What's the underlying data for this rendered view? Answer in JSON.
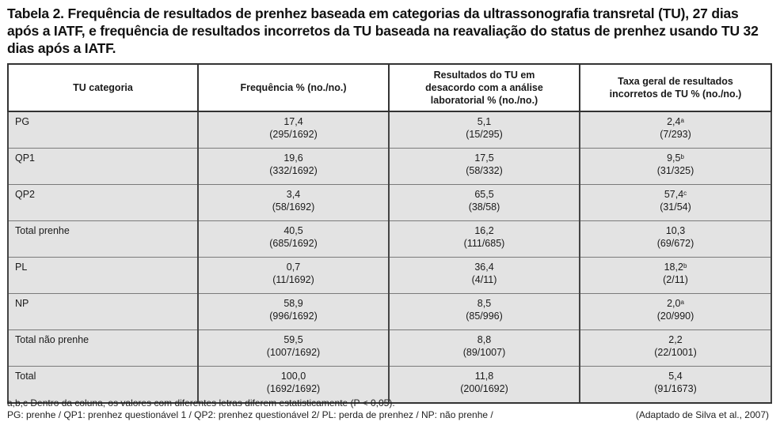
{
  "title": "Tabela 2. Frequência de resultados de prenhez baseada em categorias da ultrassonografia transretal (TU), 27 dias após a IATF, e frequência de resultados incorretos da TU baseada na reavaliação do status de prenhez usando TU 32 dias após a IATF.",
  "table": {
    "headers": [
      [
        "TU categoria"
      ],
      [
        "Frequência % (no./no.)"
      ],
      [
        "Resultados do TU em",
        "desacordo com a análise",
        "laboratorial % (no./no.)"
      ],
      [
        "Taxa geral de resultados",
        "incorretos de TU % (no./no.)"
      ]
    ],
    "rows": [
      {
        "label": "PG",
        "freq": "17,4",
        "freq_n": "(295/1692)",
        "desac": "5,1",
        "desac_n": "(15/295)",
        "taxa": "2,4",
        "taxa_sup": "a",
        "taxa_n": "(7/293)"
      },
      {
        "label": "QP1",
        "freq": "19,6",
        "freq_n": "(332/1692)",
        "desac": "17,5",
        "desac_n": "(58/332)",
        "taxa": "9,5",
        "taxa_sup": "b",
        "taxa_n": "(31/325)"
      },
      {
        "label": "QP2",
        "freq": "3,4",
        "freq_n": "(58/1692)",
        "desac": "65,5",
        "desac_n": "(38/58)",
        "taxa": "57,4",
        "taxa_sup": "c",
        "taxa_n": "(31/54)"
      },
      {
        "label": "Total prenhe",
        "freq": "40,5",
        "freq_n": "(685/1692)",
        "desac": "16,2",
        "desac_n": "(111/685)",
        "taxa": "10,3",
        "taxa_sup": "",
        "taxa_n": "(69/672)"
      },
      {
        "label": "PL",
        "freq": "0,7",
        "freq_n": "(11/1692)",
        "desac": "36,4",
        "desac_n": "(4/11)",
        "taxa": "18,2",
        "taxa_sup": "b",
        "taxa_n": "(2/11)"
      },
      {
        "label": "NP",
        "freq": "58,9",
        "freq_n": "(996/1692)",
        "desac": "8,5",
        "desac_n": "(85/996)",
        "taxa": "2,0",
        "taxa_sup": "a",
        "taxa_n": "(20/990)"
      },
      {
        "label": "Total não prenhe",
        "freq": "59,5",
        "freq_n": "(1007/1692)",
        "desac": "8,8",
        "desac_n": "(89/1007)",
        "taxa": "2,2",
        "taxa_sup": "",
        "taxa_n": "(22/1001)"
      },
      {
        "label": "Total",
        "freq": "100,0",
        "freq_n": "(1692/1692)",
        "desac": "11,8",
        "desac_n": "(200/1692)",
        "taxa": "5,4",
        "taxa_sup": "",
        "taxa_n": "(91/1673)"
      }
    ]
  },
  "footnotes": {
    "line1": "a,b,c Dentro da coluna, os valores com diferentes letras diferem estatisticamente (P < 0,05).",
    "line2": "PG: prenhe / QP1: prenhez questionável 1 / QP2: prenhez questionável 2/ PL: perda de prenhez / NP: não prenhe /",
    "source": "(Adaptado de Silva et al., 2007)"
  }
}
